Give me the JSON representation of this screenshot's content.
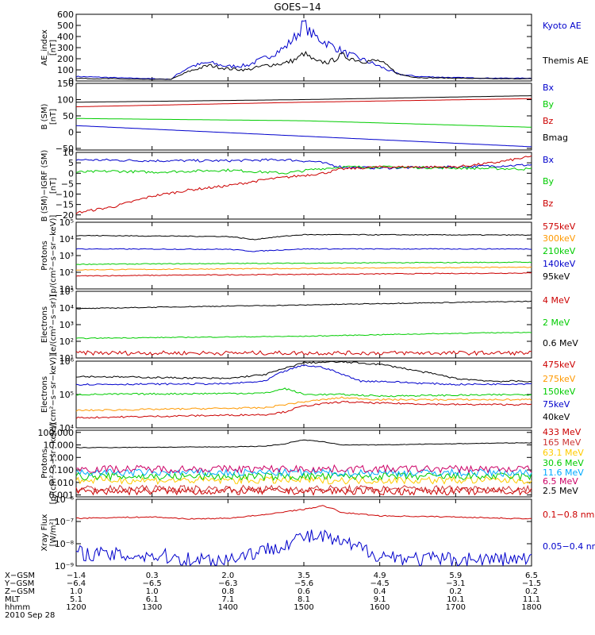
{
  "title": "GOES−14",
  "date_label": "2010 Sep 28",
  "chart_data": [
    {
      "type": "line",
      "ylabel": "AE_index\n[nT]",
      "ylim": [
        0,
        600
      ],
      "yticks": [
        "600",
        "500",
        "400",
        "300",
        "200",
        "100",
        "0"
      ],
      "ytick_values": [
        600,
        500,
        400,
        300,
        200,
        100,
        0
      ],
      "series": [
        {
          "name": "Kyoto AE",
          "color": "#0000cc",
          "x": [
            1200,
            1215,
            1230,
            1245,
            1300,
            1315,
            1320,
            1330,
            1345,
            1400,
            1415,
            1430,
            1445,
            1455,
            1500,
            1505,
            1515,
            1525,
            1535,
            1545,
            1600,
            1615,
            1630,
            1700,
            1730,
            1800
          ],
          "y": [
            40,
            35,
            30,
            25,
            20,
            15,
            60,
            130,
            165,
            130,
            140,
            210,
            300,
            420,
            520,
            430,
            360,
            300,
            240,
            200,
            130,
            60,
            40,
            30,
            25,
            25
          ]
        },
        {
          "name": "Themis AE",
          "color": "#000000",
          "x": [
            1200,
            1215,
            1230,
            1245,
            1300,
            1315,
            1330,
            1345,
            1400,
            1415,
            1430,
            1445,
            1455,
            1500,
            1510,
            1520,
            1530,
            1545,
            1600,
            1615,
            1630,
            1700,
            1730,
            1800
          ],
          "y": [
            25,
            20,
            20,
            15,
            15,
            15,
            90,
            140,
            110,
            100,
            140,
            160,
            200,
            250,
            170,
            170,
            230,
            180,
            180,
            60,
            30,
            25,
            20,
            20
          ]
        }
      ]
    },
    {
      "type": "line",
      "ylabel": "B (SM)\n[nT]",
      "ylim": [
        -55,
        150
      ],
      "yticks": [
        "150",
        "100",
        "50",
        "0",
        "−50"
      ],
      "ytick_values": [
        150,
        100,
        50,
        0,
        -50
      ],
      "series": [
        {
          "name": "Bx",
          "color": "#0000cc",
          "x": [
            1200,
            1800
          ],
          "y": [
            20,
            -45
          ]
        },
        {
          "name": "By",
          "color": "#00cc00",
          "x": [
            1200,
            1500,
            1800
          ],
          "y": [
            42,
            35,
            15
          ]
        },
        {
          "name": "Bz",
          "color": "#cc0000",
          "x": [
            1200,
            1500,
            1800
          ],
          "y": [
            78,
            92,
            103
          ]
        },
        {
          "name": "Bmag",
          "color": "#000000",
          "x": [
            1200,
            1500,
            1800
          ],
          "y": [
            92,
            100,
            112
          ]
        }
      ]
    },
    {
      "type": "line",
      "ylabel": "B (SM)−IGRF (SM)\n[nT]",
      "ylim": [
        -22,
        10
      ],
      "yticks": [
        "10",
        "5",
        "0",
        "−5",
        "−10",
        "−15",
        "−20"
      ],
      "ytick_values": [
        10,
        5,
        0,
        -5,
        -10,
        -15,
        -20
      ],
      "series": [
        {
          "name": "Bx",
          "color": "#0000cc",
          "x": [
            1200,
            1300,
            1400,
            1445,
            1510,
            1530,
            1600,
            1700,
            1800
          ],
          "y": [
            6.5,
            6,
            6,
            6.5,
            5.5,
            3,
            2.5,
            3,
            4
          ]
        },
        {
          "name": "By",
          "color": "#00cc00",
          "x": [
            1200,
            1230,
            1300,
            1400,
            1445,
            1510,
            1530,
            1600,
            1700,
            1800
          ],
          "y": [
            0.5,
            1,
            0.5,
            1.5,
            0,
            2,
            3,
            3,
            2.5,
            2
          ]
        },
        {
          "name": "Bz",
          "color": "#cc0000",
          "x": [
            1200,
            1230,
            1300,
            1330,
            1400,
            1430,
            1445,
            1500,
            1515,
            1530,
            1600,
            1700,
            1730,
            1800
          ],
          "y": [
            -19,
            -16,
            -11,
            -8,
            -6,
            -3,
            -2,
            -1,
            0,
            2,
            3,
            3,
            5,
            8
          ]
        }
      ]
    },
    {
      "type": "line",
      "ylog": true,
      "ylabel": "Protons\n[p/(cm²−s−sr−keV)]",
      "ylim": [
        10,
        100000
      ],
      "yticks": [
        "10⁵",
        "10⁴",
        "10³",
        "10²",
        "10¹"
      ],
      "ytick_values": [
        100000,
        10000,
        1000,
        100,
        10
      ],
      "series": [
        {
          "name": "575keV",
          "color": "#cc0000",
          "x": [
            1200,
            1800
          ],
          "y": [
            60,
            90
          ]
        },
        {
          "name": "300keV",
          "color": "#ff9900",
          "x": [
            1200,
            1800
          ],
          "y": [
            140,
            200
          ]
        },
        {
          "name": "210keV",
          "color": "#00cc00",
          "x": [
            1200,
            1800
          ],
          "y": [
            300,
            400
          ]
        },
        {
          "name": "140keV",
          "color": "#0000cc",
          "x": [
            1200,
            1400,
            1420,
            1500,
            1800
          ],
          "y": [
            2500,
            2400,
            1800,
            2500,
            2500
          ]
        },
        {
          "name": "95keV",
          "color": "#000000",
          "x": [
            1200,
            1400,
            1420,
            1500,
            1800
          ],
          "y": [
            16000,
            14000,
            9000,
            18000,
            17000
          ]
        }
      ]
    },
    {
      "type": "line",
      "ylog": true,
      "ylabel": "Electrons\n[e/(cm²−s−sr)]",
      "ylim": [
        10,
        100000
      ],
      "yticks": [
        "10⁵",
        "10⁴",
        "10³",
        "10²",
        "10¹"
      ],
      "ytick_values": [
        100000,
        10000,
        1000,
        100,
        10
      ],
      "series": [
        {
          "name": "4 MeV",
          "color": "#cc0000",
          "x": [
            1200,
            1800
          ],
          "y": [
            20,
            20
          ]
        },
        {
          "name": "2 MeV",
          "color": "#00cc00",
          "x": [
            1200,
            1500,
            1800
          ],
          "y": [
            150,
            200,
            350
          ]
        },
        {
          "name": "0.6 MeV",
          "color": "#000000",
          "x": [
            1200,
            1500,
            1800
          ],
          "y": [
            9000,
            15000,
            25000
          ]
        }
      ]
    },
    {
      "type": "line",
      "ylog": true,
      "ylabel": "Electrons\n[e/(cm²−s−sr−keV)]",
      "ylim": [
        10000,
        1000000
      ],
      "yticks": [
        "10⁶",
        "10⁵",
        "10⁴"
      ],
      "ytick_values": [
        1000000,
        100000,
        10000
      ],
      "series": [
        {
          "name": "475keV",
          "color": "#cc0000",
          "x": [
            1200,
            1430,
            1445,
            1500,
            1530,
            1600,
            1700,
            1800
          ],
          "y": [
            20000,
            25000,
            30000,
            45000,
            60000,
            55000,
            50000,
            50000
          ]
        },
        {
          "name": "275keV",
          "color": "#ff9900",
          "x": [
            1200,
            1430,
            1445,
            1500,
            1530,
            1600,
            1800
          ],
          "y": [
            33000,
            40000,
            50000,
            60000,
            80000,
            70000,
            70000
          ]
        },
        {
          "name": "150keV",
          "color": "#00cc00",
          "x": [
            1200,
            1430,
            1445,
            1500,
            1530,
            1600,
            1800
          ],
          "y": [
            100000,
            110000,
            150000,
            100000,
            100000,
            90000,
            100000
          ]
        },
        {
          "name": "75keV",
          "color": "#0000cc",
          "x": [
            1200,
            1400,
            1430,
            1445,
            1500,
            1515,
            1530,
            1545,
            1600,
            1630,
            1700,
            1800
          ],
          "y": [
            200000,
            210000,
            250000,
            500000,
            750000,
            650000,
            400000,
            250000,
            250000,
            220000,
            200000,
            210000
          ]
        },
        {
          "name": "40keV",
          "color": "#000000",
          "x": [
            1200,
            1400,
            1430,
            1445,
            1500,
            1530,
            1600,
            1630,
            1700,
            1730,
            1800
          ],
          "y": [
            350000,
            300000,
            400000,
            600000,
            900000,
            950000,
            800000,
            500000,
            300000,
            250000,
            250000
          ]
        }
      ]
    },
    {
      "type": "line",
      "ylog": true,
      "ylabel": "Protons\n[p/(cm²−s−sr−keV)]",
      "ylim": [
        0.0007,
        150
      ],
      "yticks": [
        "100.000",
        "10.000",
        "1.000",
        "0.100",
        "0.010",
        "0.001"
      ],
      "ytick_values": [
        100,
        10,
        1,
        0.1,
        0.01,
        0.001
      ],
      "series": [
        {
          "name": "433 MeV",
          "color": "#cc0000",
          "x": [
            1200,
            1800
          ],
          "y": [
            0.002,
            0.002
          ]
        },
        {
          "name": "165 MeV",
          "color": "#cc3333",
          "x": [
            1200,
            1800
          ],
          "y": [
            0.003,
            0.003
          ]
        },
        {
          "name": "63.1 MeV",
          "color": "#ffcc00",
          "x": [
            1200,
            1800
          ],
          "y": [
            0.015,
            0.015
          ]
        },
        {
          "name": "30.6 MeV",
          "color": "#00cc00",
          "x": [
            1200,
            1800
          ],
          "y": [
            0.03,
            0.03
          ]
        },
        {
          "name": "11.6 MeV",
          "color": "#00aaff",
          "x": [
            1200,
            1800
          ],
          "y": [
            0.06,
            0.06
          ]
        },
        {
          "name": "6.5 MeV",
          "color": "#cc0066",
          "x": [
            1200,
            1800
          ],
          "y": [
            0.12,
            0.12
          ]
        },
        {
          "name": "2.5 MeV",
          "color": "#000000",
          "x": [
            1200,
            1400,
            1430,
            1445,
            1500,
            1530,
            1600,
            1800
          ],
          "y": [
            6,
            7,
            8,
            12,
            25,
            10,
            10,
            15
          ]
        }
      ]
    },
    {
      "type": "line",
      "ylog": true,
      "ylabel": "Xray Flux\n[W/m²]",
      "ylim": [
        1e-09,
        1e-06
      ],
      "yticks": [
        "10⁻⁶",
        "10⁻⁷",
        "10⁻⁸",
        "10⁻⁹"
      ],
      "ytick_values": [
        1e-06,
        1e-07,
        1e-08,
        1e-09
      ],
      "series": [
        {
          "name": "0.1−0.8 nm",
          "color": "#cc0000",
          "x": [
            1200,
            1300,
            1330,
            1400,
            1430,
            1500,
            1515,
            1530,
            1600,
            1700,
            1800
          ],
          "y": [
            1.4e-07,
            1.6e-07,
            1.3e-07,
            1.4e-07,
            2e-07,
            3.5e-07,
            5e-07,
            2.5e-07,
            1.8e-07,
            1.6e-07,
            1.3e-07
          ]
        },
        {
          "name": "0.05−0.4 nm",
          "color": "#0000cc",
          "x": [
            1200,
            1230,
            1300,
            1330,
            1400,
            1430,
            1445,
            1500,
            1515,
            1530,
            1545,
            1600,
            1630,
            1700,
            1730,
            1800
          ],
          "y": [
            4e-09,
            3e-09,
            3e-09,
            2e-09,
            2e-09,
            5e-09,
            1e-08,
            2e-08,
            2e-08,
            1e-08,
            6e-09,
            3e-09,
            2e-09,
            2e-09,
            2e-09,
            2e-09
          ]
        }
      ]
    }
  ],
  "x_axis": {
    "range": [
      1200,
      1800
    ],
    "tick_values": [
      1200,
      1300,
      1400,
      1500,
      1600,
      1700,
      1800
    ],
    "row_labels": [
      "X−GSM",
      "Y−GSM",
      "Z−GSM",
      "MLT",
      "hhmm"
    ],
    "rows": [
      [
        "−1.4",
        "0.3",
        "2.0",
        "3.5",
        "4.9",
        "5.9",
        "6.5"
      ],
      [
        "−6.4",
        "−6.5",
        "−6.3",
        "−5.6",
        "−4.5",
        "−3.1",
        "−1.5"
      ],
      [
        "1.0",
        "1.0",
        "0.8",
        "0.6",
        "0.4",
        "0.2",
        "0.2"
      ],
      [
        "5.1",
        "6.1",
        "7.1",
        "8.1",
        "9.1",
        "10.1",
        "11.1"
      ],
      [
        "1200",
        "1300",
        "1400",
        "1500",
        "1600",
        "1700",
        "1800"
      ]
    ]
  }
}
